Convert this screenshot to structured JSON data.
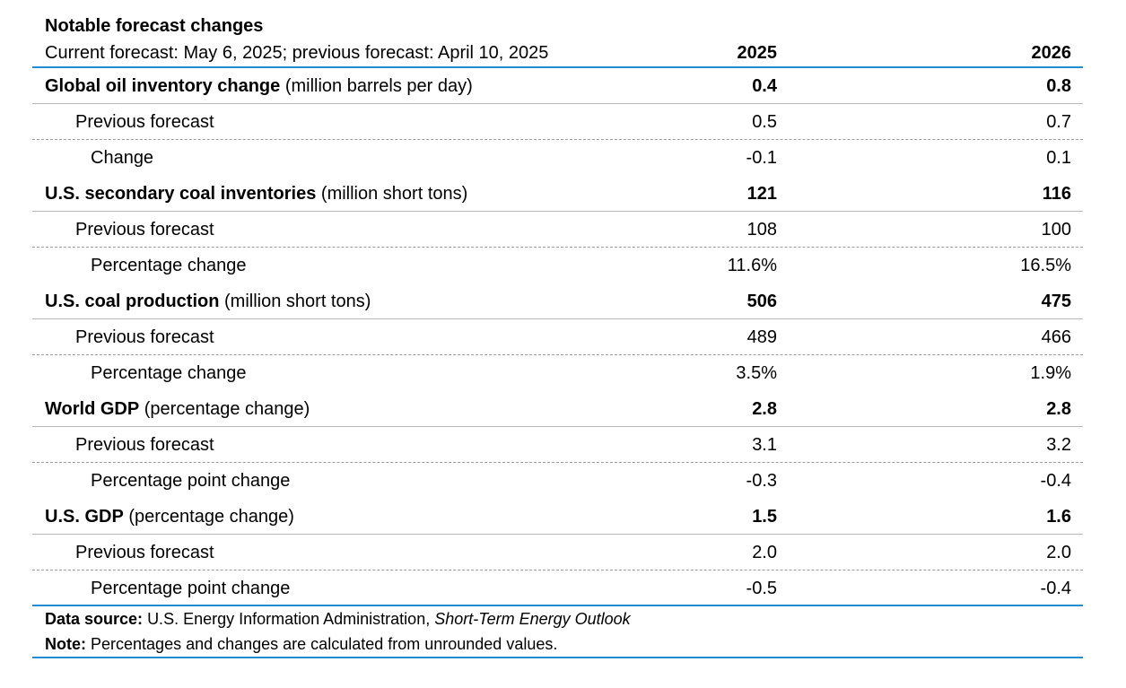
{
  "chart_data": {
    "type": "table",
    "title": "Notable forecast changes",
    "subtitle": "Current forecast: May 6, 2025; previous forecast: April 10, 2025",
    "columns": [
      "2025",
      "2026"
    ],
    "groups": [
      {
        "name": "Global oil inventory change",
        "unit": "(million barrels per day)",
        "current": [
          "0.4",
          "0.8"
        ],
        "previous_label": "Previous forecast",
        "previous": [
          "0.5",
          "0.7"
        ],
        "change_label": "Change",
        "change": [
          "-0.1",
          "0.1"
        ]
      },
      {
        "name": "U.S. secondary coal inventories",
        "unit": "(million short tons)",
        "current": [
          "121",
          "116"
        ],
        "previous_label": "Previous forecast",
        "previous": [
          "108",
          "100"
        ],
        "change_label": "Percentage change",
        "change": [
          "11.6%",
          "16.5%"
        ]
      },
      {
        "name": "U.S. coal production",
        "unit": "(million short tons)",
        "current": [
          "506",
          "475"
        ],
        "previous_label": "Previous forecast",
        "previous": [
          "489",
          "466"
        ],
        "change_label": "Percentage change",
        "change": [
          "3.5%",
          "1.9%"
        ]
      },
      {
        "name": "World GDP",
        "unit": "(percentage change)",
        "current": [
          "2.8",
          "2.8"
        ],
        "previous_label": "Previous forecast",
        "previous": [
          "3.1",
          "3.2"
        ],
        "change_label": "Percentage point change",
        "change": [
          "-0.3",
          "-0.4"
        ]
      },
      {
        "name": "U.S. GDP",
        "unit": "(percentage change)",
        "current": [
          "1.5",
          "1.6"
        ],
        "previous_label": "Previous forecast",
        "previous": [
          "2.0",
          "2.0"
        ],
        "change_label": "Percentage point change",
        "change": [
          "-0.5",
          "-0.4"
        ]
      }
    ],
    "footnotes": {
      "source_label": "Data source:",
      "source_text": "U.S. Energy Information Administration,",
      "source_title": "Short-Term Energy Outlook",
      "note_label": "Note:",
      "note_text": "Percentages and changes are calculated from unrounded values."
    }
  }
}
